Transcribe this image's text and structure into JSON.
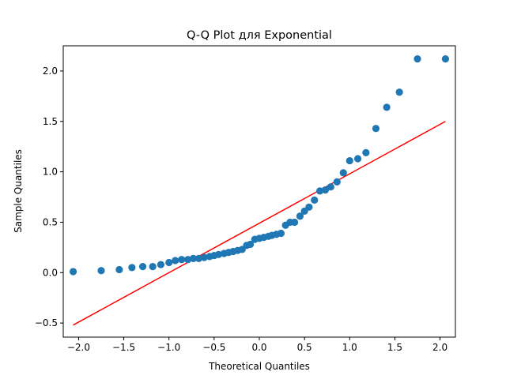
{
  "chart_data": {
    "type": "scatter",
    "title": "Q-Q Plot для Exponential",
    "xlabel": "Theoretical Quantiles",
    "ylabel": "Sample Quantiles",
    "xlim": [
      -2.17,
      2.17
    ],
    "ylim": [
      -0.64,
      2.25
    ],
    "xticks": [
      -2.0,
      -1.5,
      -1.0,
      -0.5,
      0.0,
      0.5,
      1.0,
      1.5,
      2.0
    ],
    "xtick_labels": [
      "−2.0",
      "−1.5",
      "−1.0",
      "−0.5",
      "0.0",
      "0.5",
      "1.0",
      "1.5",
      "2.0"
    ],
    "yticks": [
      -0.5,
      0.0,
      0.5,
      1.0,
      1.5,
      2.0
    ],
    "ytick_labels": [
      "−0.5",
      "0.0",
      "0.5",
      "1.0",
      "1.5",
      "2.0"
    ],
    "grid": false,
    "point_color": "#1f77b4",
    "line_color": "#ff0000",
    "reference_line": {
      "x": [
        -2.06,
        2.06
      ],
      "y": [
        -0.52,
        1.5
      ]
    },
    "points": {
      "x": [
        -2.06,
        -1.75,
        -1.55,
        -1.41,
        -1.29,
        -1.18,
        -1.09,
        -1.0,
        -0.93,
        -0.86,
        -0.79,
        -0.73,
        -0.67,
        -0.61,
        -0.55,
        -0.5,
        -0.45,
        -0.39,
        -0.34,
        -0.29,
        -0.24,
        -0.19,
        -0.14,
        -0.1,
        -0.05,
        0.0,
        0.05,
        0.1,
        0.14,
        0.19,
        0.24,
        0.29,
        0.34,
        0.39,
        0.45,
        0.5,
        0.55,
        0.61,
        0.67,
        0.73,
        0.79,
        0.86,
        0.93,
        1.0,
        1.09,
        1.18,
        1.29,
        1.41,
        1.55,
        1.75,
        2.06
      ],
      "y": [
        0.01,
        0.02,
        0.03,
        0.05,
        0.06,
        0.06,
        0.08,
        0.1,
        0.12,
        0.13,
        0.13,
        0.14,
        0.14,
        0.15,
        0.16,
        0.17,
        0.18,
        0.19,
        0.2,
        0.21,
        0.22,
        0.23,
        0.27,
        0.28,
        0.33,
        0.34,
        0.35,
        0.36,
        0.37,
        0.38,
        0.39,
        0.47,
        0.5,
        0.5,
        0.56,
        0.61,
        0.65,
        0.72,
        0.81,
        0.82,
        0.85,
        0.9,
        0.99,
        1.11,
        1.13,
        1.19,
        1.43,
        1.64,
        1.79,
        2.12,
        2.12
      ]
    }
  }
}
